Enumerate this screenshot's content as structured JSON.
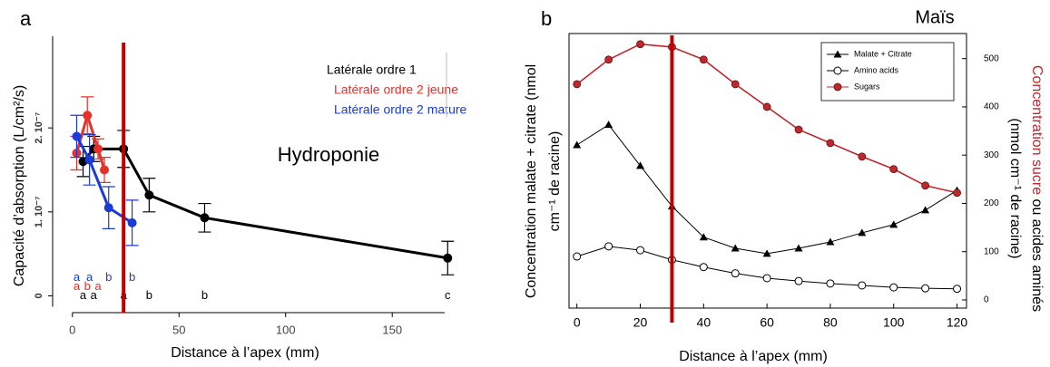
{
  "chart_data": [
    {
      "type": "line",
      "label": "a",
      "annotation": "Hydroponie",
      "x_label": "Distance à l’apex (mm)",
      "y_label": "Capacité d’absorption (L/cm²/s)",
      "xlim": [
        -8,
        178
      ],
      "xticks": [
        0,
        50,
        100,
        150
      ],
      "ylim": [
        -2e-08,
        3.2e-07
      ],
      "yticks": [
        0,
        {
          "value": 1e-07,
          "label": "1. 10⁻⁷"
        },
        {
          "value": 2e-07,
          "label": "2. 10⁻⁷"
        }
      ],
      "vline": {
        "x": 24,
        "color": "#c00000"
      },
      "series": [
        {
          "name": "Latérale ordre 1",
          "color": "#000000",
          "x": [
            5,
            10,
            24,
            36,
            62,
            176
          ],
          "values": [
            1.6e-07,
            1.75e-07,
            1.75e-07,
            1.2e-07,
            9.3e-08,
            4.5e-08
          ],
          "errors": [
            1.8e-08,
            1.5e-08,
            2.2e-08,
            2e-08,
            1.7e-08,
            2e-08
          ],
          "letters": [
            "a",
            "a",
            "a",
            "b",
            "b",
            "c"
          ]
        },
        {
          "name": "Latérale ordre 2 jeune",
          "color": "#e8302a",
          "x": [
            2,
            7,
            12,
            15
          ],
          "values": [
            1.7e-07,
            2.15e-07,
            1.75e-07,
            1.5e-07
          ],
          "errors": [
            2e-08,
            2.2e-08,
            1.2e-08,
            1.5e-08
          ],
          "letters": [
            "a",
            "b",
            "a",
            null
          ]
        },
        {
          "name": "Latérale ordre 2 mature",
          "color": "#1a3bd6",
          "x": [
            2,
            8,
            17,
            28
          ],
          "values": [
            1.9e-07,
            1.62e-07,
            1.05e-07,
            8.7e-08
          ],
          "errors": [
            2.5e-08,
            3e-08,
            2.5e-08,
            2.7e-08
          ],
          "letters": [
            "a",
            "a",
            "b",
            "b"
          ]
        }
      ]
    },
    {
      "type": "line",
      "label": "b",
      "title": "Maïs",
      "x_label": "Distance à l’apex (mm)",
      "y_label": [
        "Concentration malate + citrate (nmol",
        "cm⁻¹ de racine)"
      ],
      "y2_label": {
        "red": "Concentration sucre",
        "black": " ou acides aminés",
        "line2": "(nmol cm⁻¹ de racine)"
      },
      "x": [
        0,
        10,
        20,
        30,
        40,
        50,
        60,
        70,
        80,
        90,
        100,
        110,
        120
      ],
      "xlim": [
        -2.5,
        123
      ],
      "xticks": [
        0,
        20,
        40,
        60,
        80,
        100,
        120
      ],
      "y2lim": [
        -17,
        552
      ],
      "y2ticks": [
        0,
        100,
        200,
        300,
        400,
        500
      ],
      "vline": {
        "x": 30,
        "color": "#c00000"
      },
      "legend": "upper right",
      "series": [
        {
          "name": "Malate + Citrate",
          "color": "#000000",
          "marker": "triangle",
          "axis": "y2",
          "values": [
            321,
            363,
            278,
            194,
            130,
            107,
            96,
            107,
            120,
            139,
            156,
            186,
            227
          ]
        },
        {
          "name": "Amino acids",
          "color": "#000000",
          "marker": "open-circle",
          "axis": "y2",
          "values": [
            90,
            111,
            103,
            83,
            68,
            55,
            45,
            39,
            34,
            30,
            26,
            24,
            23
          ]
        },
        {
          "name": "Sugars",
          "color": "#c0282d",
          "marker": "filled-circle",
          "axis": "y2",
          "values": [
            447,
            498,
            530,
            524,
            498,
            447,
            400,
            353,
            325,
            297,
            271,
            237,
            222
          ]
        }
      ]
    }
  ]
}
